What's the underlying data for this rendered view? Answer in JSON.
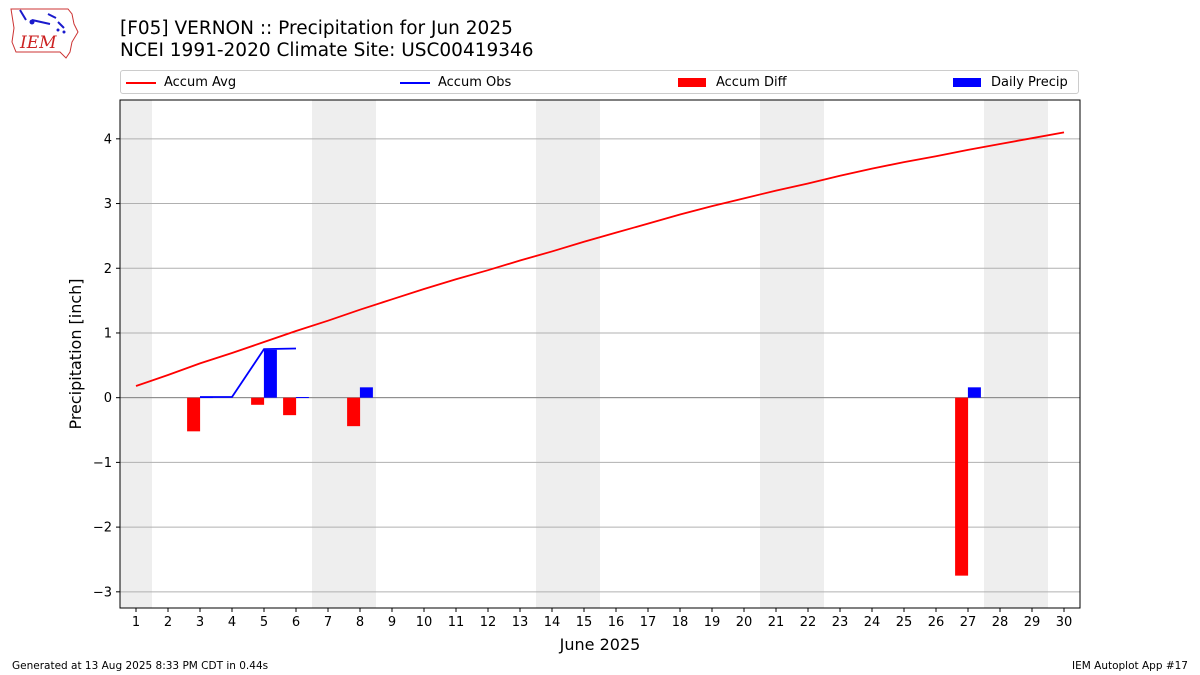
{
  "header": {
    "title_line1": "[F05] VERNON :: Precipitation for Jun 2025",
    "title_line2": "NCEI 1991-2020 Climate Site: USC00419346",
    "logo_text": "IEM"
  },
  "footer": {
    "generated": "Generated at 13 Aug 2025 8:33 PM CDT in 0.44s",
    "app": "IEM Autoplot App #17"
  },
  "legend": [
    {
      "label": "Accum Avg",
      "kind": "line",
      "color": "#ff0000"
    },
    {
      "label": "Accum Obs",
      "kind": "line",
      "color": "#0000ff"
    },
    {
      "label": "Accum Diff",
      "kind": "bar",
      "color": "#ff0000"
    },
    {
      "label": "Daily Precip",
      "kind": "bar",
      "color": "#0000ff"
    }
  ],
  "chart_data": {
    "type": "bar",
    "title": "[F05] VERNON :: Precipitation for Jun 2025",
    "subtitle": "NCEI 1991-2020 Climate Site: USC00419346",
    "xlabel": "June 2025",
    "ylabel": "Precipitation [inch]",
    "xlim": [
      0.5,
      30.5
    ],
    "ylim": [
      -3.25,
      4.6
    ],
    "x_ticks": [
      1,
      2,
      3,
      4,
      5,
      6,
      7,
      8,
      9,
      10,
      11,
      12,
      13,
      14,
      15,
      16,
      17,
      18,
      19,
      20,
      21,
      22,
      23,
      24,
      25,
      26,
      27,
      28,
      29,
      30
    ],
    "y_ticks": [
      -3,
      -2,
      -1,
      0,
      1,
      2,
      3,
      4
    ],
    "grid": "horizontal",
    "legend_position": "top",
    "weekend_shading": [
      [
        0.5,
        1.5
      ],
      [
        6.5,
        8.5
      ],
      [
        13.5,
        15.5
      ],
      [
        20.5,
        22.5
      ],
      [
        27.5,
        29.5
      ]
    ],
    "shade_color": "#eeeeee",
    "series": [
      {
        "name": "Accum Avg",
        "type": "line",
        "color": "#ff0000",
        "x": [
          1,
          2,
          3,
          4,
          5,
          6,
          7,
          8,
          9,
          10,
          11,
          12,
          13,
          14,
          15,
          16,
          17,
          18,
          19,
          20,
          21,
          22,
          23,
          24,
          25,
          26,
          27,
          28,
          29,
          30
        ],
        "values": [
          0.18,
          0.35,
          0.53,
          0.69,
          0.86,
          1.03,
          1.19,
          1.36,
          1.52,
          1.68,
          1.83,
          1.97,
          2.12,
          2.26,
          2.41,
          2.55,
          2.69,
          2.83,
          2.96,
          3.08,
          3.2,
          3.31,
          3.43,
          3.54,
          3.64,
          3.73,
          3.83,
          3.92,
          4.01,
          4.1
        ]
      },
      {
        "name": "Accum Obs",
        "type": "line",
        "color": "#0000ff",
        "x": [
          3,
          4,
          5,
          6
        ],
        "values": [
          0.01,
          0.01,
          0.75,
          0.76
        ]
      },
      {
        "name": "Accum Diff",
        "type": "bar",
        "color": "#ff0000",
        "offset": -0.2,
        "x": [
          3,
          5,
          6,
          8,
          27
        ],
        "values": [
          -0.52,
          -0.11,
          -0.27,
          -0.44,
          -2.75
        ]
      },
      {
        "name": "Daily Precip",
        "type": "bar",
        "color": "#0000ff",
        "offset": 0.2,
        "x": [
          3,
          5,
          6,
          8,
          27
        ],
        "values": [
          0.01,
          0.74,
          0.01,
          0.16,
          0.16
        ]
      }
    ]
  }
}
